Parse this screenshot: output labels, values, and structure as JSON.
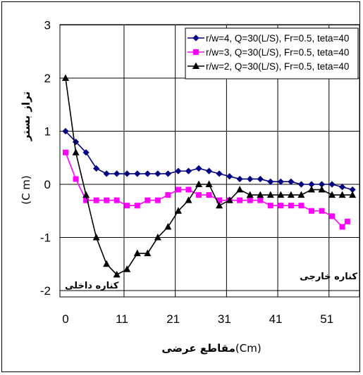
{
  "chart_data": {
    "type": "line",
    "xlabel_prefix": "مقاطع عرضی",
    "xlabel_unit": "(Cm)",
    "ylabel_main": "تراز بستر",
    "ylabel_unit": "(C m)",
    "xlim": [
      0,
      56
    ],
    "ylim": [
      -2,
      3
    ],
    "xticks": [
      0,
      11,
      21,
      31,
      41,
      51
    ],
    "yticks": [
      3,
      2,
      1,
      0,
      -1,
      -2
    ],
    "grid": true,
    "legend_position": "top-right",
    "annotations": {
      "inner_bank": "کناره داخلی",
      "outer_bank": "کناره خارجی"
    },
    "series": [
      {
        "name": "r/w=4, Q=30(L/S), Fr=0.5, teta=40",
        "marker": "diamond",
        "color": "#000080",
        "x": [
          0,
          2,
          4,
          6,
          8,
          10,
          12,
          14,
          16,
          18,
          20,
          22,
          24,
          26,
          28,
          30,
          32,
          34,
          36,
          38,
          40,
          42,
          44,
          46,
          48,
          50,
          52,
          54,
          56
        ],
        "y": [
          1.0,
          0.8,
          0.6,
          0.3,
          0.2,
          0.2,
          0.2,
          0.2,
          0.2,
          0.2,
          0.2,
          0.25,
          0.25,
          0.3,
          0.25,
          0.2,
          0.15,
          0.1,
          0.1,
          0.1,
          0.05,
          0.05,
          0.05,
          0.0,
          0.0,
          0.0,
          0.0,
          -0.05,
          -0.1
        ]
      },
      {
        "name": "r/w=3, Q=30(L/S), Fr=0.5, teta=40",
        "marker": "square",
        "color": "#ff00ff",
        "x": [
          0,
          2,
          4,
          6,
          8,
          10,
          12,
          14,
          16,
          18,
          20,
          22,
          24,
          26,
          28,
          30,
          32,
          34,
          36,
          38,
          40,
          42,
          44,
          46,
          48,
          50,
          52,
          54,
          55
        ],
        "y": [
          0.6,
          0.1,
          -0.3,
          -0.3,
          -0.3,
          -0.3,
          -0.4,
          -0.4,
          -0.3,
          -0.3,
          -0.2,
          -0.1,
          -0.1,
          -0.2,
          -0.2,
          -0.3,
          -0.3,
          -0.3,
          -0.3,
          -0.3,
          -0.4,
          -0.4,
          -0.4,
          -0.4,
          -0.5,
          -0.5,
          -0.6,
          -0.8,
          -0.7
        ]
      },
      {
        "name": "r/w=2, Q=30(L/S), Fr=0.5, teta=40",
        "marker": "triangle",
        "color": "#000000",
        "x": [
          0,
          2,
          4,
          6,
          8,
          10,
          12,
          14,
          16,
          18,
          20,
          22,
          24,
          26,
          28,
          30,
          32,
          34,
          36,
          38,
          40,
          42,
          44,
          46,
          48,
          50,
          52,
          54,
          56
        ],
        "y": [
          2.0,
          0.6,
          -0.2,
          -1.0,
          -1.5,
          -1.7,
          -1.6,
          -1.3,
          -1.3,
          -1.0,
          -0.8,
          -0.5,
          -0.3,
          0.0,
          0.0,
          -0.4,
          -0.3,
          -0.1,
          -0.2,
          -0.2,
          -0.2,
          -0.2,
          -0.2,
          -0.2,
          -0.1,
          -0.1,
          -0.2,
          -0.2,
          -0.2
        ]
      }
    ]
  }
}
